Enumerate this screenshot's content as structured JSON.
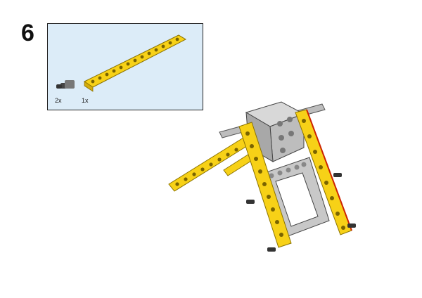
{
  "step": {
    "number": "6"
  },
  "parts": [
    {
      "name": "connector-pin",
      "quantity": "2x",
      "icon": "axle-pin-icon"
    },
    {
      "name": "straight-beam",
      "quantity": "1x",
      "icon": "yellow-beam-icon"
    }
  ],
  "colors": {
    "panel_bg": "#dcecf8",
    "beam_yellow": "#f7d117",
    "frame_gray": "#c8c8c8",
    "accent_red": "#cc2200"
  }
}
